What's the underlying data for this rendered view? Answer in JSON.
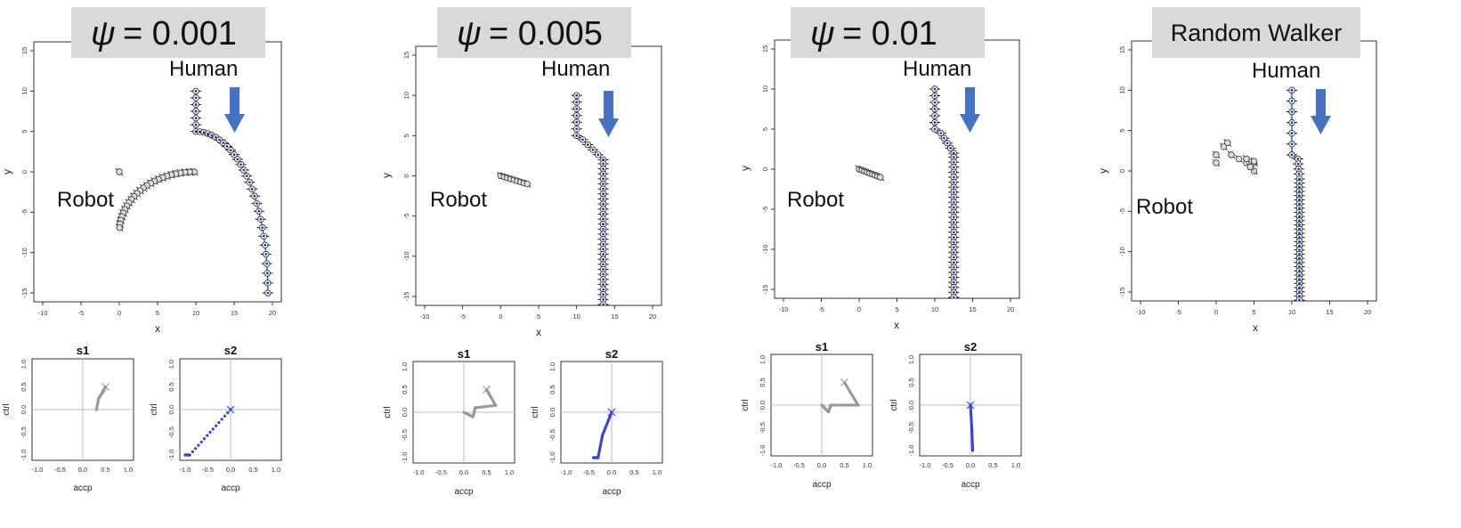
{
  "colors": {
    "robot_fill": "#dddddd",
    "robot_stroke": "#333333",
    "human_fill": "#ffffff",
    "human_stroke": "#222222",
    "human_dot": "#2233bb",
    "human_line": "#3355dd",
    "arrow": "#4472c4",
    "banner": "#d9d9d9",
    "s1_points": "#999999",
    "s2_points": "#3344dd",
    "refline": "#bbbbbb"
  },
  "chart_data": [
    {
      "type": "scatter",
      "panel": "psi-0.001",
      "title_symbol": "ψ",
      "title_value": "= 0.001",
      "xlabel": "x",
      "ylabel": "y",
      "xlim": [
        -10,
        20
      ],
      "ylim": [
        -15,
        15
      ],
      "xticks": [
        "-10",
        "-5",
        "0",
        "5",
        "10",
        "15",
        "20"
      ],
      "yticks": [
        "-15",
        "-10",
        "-5",
        "0",
        "5",
        "10",
        "15"
      ],
      "annotations": {
        "human": "Human",
        "robot": "Robot"
      },
      "robot": {
        "start": [
          0,
          0
        ],
        "end": [
          9.7,
          -7.5
        ],
        "shape": "arc"
      },
      "human": {
        "start": [
          10,
          10
        ],
        "mid": [
          10,
          5
        ],
        "end": [
          19,
          -15
        ],
        "shape": "curve-right"
      },
      "s1": {
        "title": "s1",
        "xlabel": "accp",
        "ylabel": "ctrl",
        "path": [
          [
            0.3,
            0.0
          ],
          [
            0.35,
            0.25
          ],
          [
            0.45,
            0.4
          ],
          [
            0.5,
            0.5
          ]
        ],
        "mark": [
          0.5,
          0.5
        ]
      },
      "s2": {
        "title": "s2",
        "xlabel": "accp",
        "ylabel": "ctrl",
        "path": [
          [
            -1.0,
            -1.0
          ],
          [
            -0.9,
            -1.0
          ],
          [
            0.0,
            0.0
          ]
        ],
        "mark": [
          0.0,
          0.0
        ]
      }
    },
    {
      "type": "scatter",
      "panel": "psi-0.005",
      "title_symbol": "ψ",
      "title_value": "= 0.005",
      "xlabel": "x",
      "ylabel": "y",
      "xlim": [
        -10,
        20
      ],
      "ylim": [
        -15,
        15
      ],
      "xticks": [
        "-10",
        "-5",
        "0",
        "5",
        "10",
        "15",
        "20"
      ],
      "yticks": [
        "-15",
        "-10",
        "-5",
        "0",
        "5",
        "10",
        "15"
      ],
      "annotations": {
        "human": "Human",
        "robot": "Robot"
      },
      "robot": {
        "start": [
          0,
          0
        ],
        "end": [
          3.5,
          -1.0
        ],
        "shape": "line"
      },
      "human": {
        "start": [
          10,
          10
        ],
        "mid": [
          10,
          5
        ],
        "end": [
          13.5,
          -16
        ],
        "shape": "step-down"
      },
      "s1": {
        "title": "s1",
        "xlabel": "accp",
        "ylabel": "ctrl",
        "path": [
          [
            0.0,
            0.0
          ],
          [
            0.2,
            -0.1
          ],
          [
            0.25,
            0.1
          ],
          [
            0.7,
            0.15
          ],
          [
            0.5,
            0.5
          ]
        ],
        "mark": [
          0.5,
          0.5
        ]
      },
      "s2": {
        "title": "s2",
        "xlabel": "accp",
        "ylabel": "ctrl",
        "path": [
          [
            -0.4,
            -1.0
          ],
          [
            -0.3,
            -1.0
          ],
          [
            -0.2,
            -0.5
          ],
          [
            0.0,
            0.0
          ]
        ],
        "mark": [
          0.0,
          0.0
        ]
      }
    },
    {
      "type": "scatter",
      "panel": "psi-0.01",
      "title_symbol": "ψ",
      "title_value": "= 0.01",
      "xlabel": "x",
      "ylabel": "y",
      "xlim": [
        -10,
        20
      ],
      "ylim": [
        -15,
        15
      ],
      "xticks": [
        "-10",
        "-5",
        "0",
        "5",
        "10",
        "15",
        "20"
      ],
      "yticks": [
        "-15",
        "-10",
        "-5",
        "0",
        "5",
        "10",
        "15"
      ],
      "annotations": {
        "human": "Human",
        "robot": "Robot"
      },
      "robot": {
        "start": [
          0,
          0
        ],
        "end": [
          2.8,
          -1.0
        ],
        "shape": "line"
      },
      "human": {
        "start": [
          10,
          10
        ],
        "mid": [
          10,
          5
        ],
        "end": [
          12.5,
          -16
        ],
        "shape": "step-down"
      },
      "s1": {
        "title": "s1",
        "xlabel": "accp",
        "ylabel": "ctrl",
        "path": [
          [
            0.0,
            0.0
          ],
          [
            0.15,
            -0.15
          ],
          [
            0.2,
            0.0
          ],
          [
            0.8,
            0.0
          ],
          [
            0.5,
            0.5
          ]
        ],
        "mark": [
          0.5,
          0.5
        ]
      },
      "s2": {
        "title": "s2",
        "xlabel": "accp",
        "ylabel": "ctrl",
        "path": [
          [
            0.05,
            -1.0
          ],
          [
            0.03,
            -0.5
          ],
          [
            0.0,
            0.0
          ]
        ],
        "mark": [
          0.0,
          0.0
        ]
      }
    },
    {
      "type": "scatter",
      "panel": "random-walker",
      "title_text": "Random Walker",
      "xlabel": "x",
      "ylabel": "y",
      "xlim": [
        -10,
        20
      ],
      "ylim": [
        -15,
        15
      ],
      "xticks": [
        "-10",
        "-5",
        "0",
        "5",
        "10",
        "15",
        "20"
      ],
      "yticks": [
        "-15",
        "-10",
        "-5",
        "0",
        "5",
        "10",
        "15"
      ],
      "annotations": {
        "human": "Human",
        "robot": "Robot"
      },
      "robot": {
        "start": [
          0,
          0
        ],
        "end": [
          5,
          1
        ],
        "shape": "wander"
      },
      "human": {
        "start": [
          10,
          10
        ],
        "mid": [
          10,
          2
        ],
        "end": [
          11,
          -16
        ],
        "shape": "step-down"
      }
    }
  ]
}
